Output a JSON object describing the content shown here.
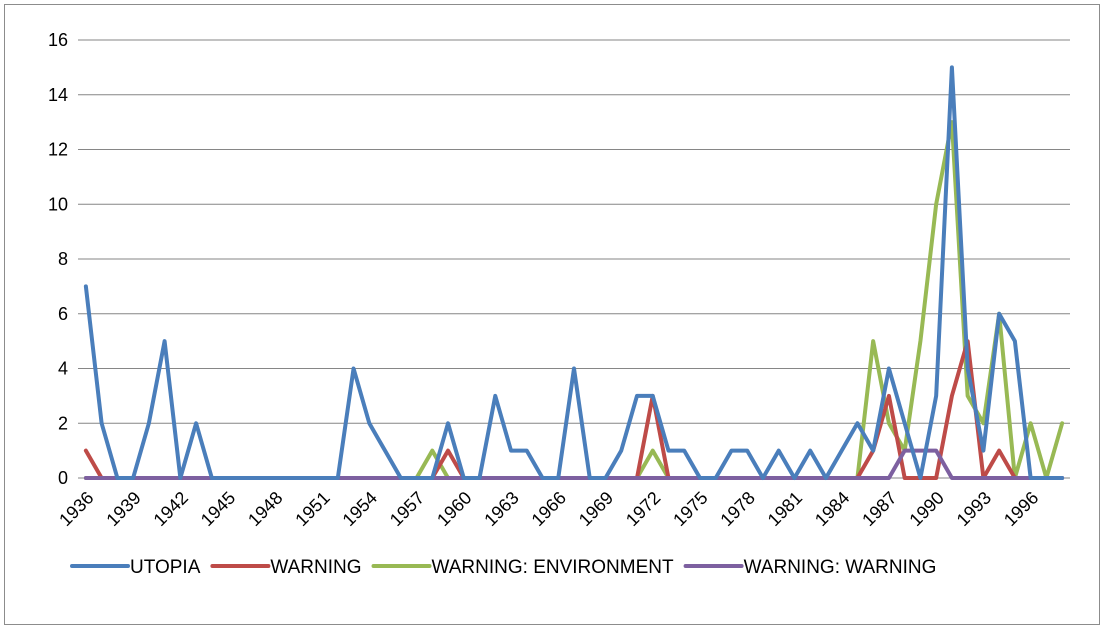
{
  "chart_data": {
    "type": "line",
    "title": "",
    "xlabel": "",
    "ylabel": "",
    "ylim": [
      0,
      16
    ],
    "yticks": [
      0,
      2,
      4,
      6,
      8,
      10,
      12,
      14,
      16
    ],
    "x": [
      1936,
      1937,
      1938,
      1939,
      1940,
      1941,
      1942,
      1943,
      1944,
      1945,
      1946,
      1947,
      1948,
      1949,
      1950,
      1951,
      1952,
      1953,
      1954,
      1955,
      1956,
      1957,
      1958,
      1959,
      1960,
      1961,
      1962,
      1963,
      1964,
      1965,
      1966,
      1967,
      1968,
      1969,
      1970,
      1971,
      1972,
      1973,
      1974,
      1975,
      1976,
      1977,
      1978,
      1979,
      1980,
      1981,
      1982,
      1983,
      1984,
      1985,
      1986,
      1987,
      1988,
      1989,
      1990,
      1991,
      1992,
      1993,
      1994,
      1995,
      1996,
      1997,
      1998
    ],
    "xtick_labels": [
      "1936",
      "1939",
      "1942",
      "1945",
      "1948",
      "1951",
      "1954",
      "1957",
      "1960",
      "1963",
      "1966",
      "1969",
      "1972",
      "1975",
      "1978",
      "1981",
      "1984",
      "1987",
      "1990",
      "1993",
      "1996"
    ],
    "grid": "horizontal",
    "legend_position": "bottom",
    "series": [
      {
        "name": "UTOPIA",
        "color": "#4a7ebb",
        "values": [
          7,
          2,
          0,
          0,
          2,
          5,
          0,
          2,
          0,
          0,
          0,
          0,
          0,
          0,
          0,
          0,
          0,
          4,
          2,
          1,
          0,
          0,
          0,
          2,
          0,
          0,
          3,
          1,
          1,
          0,
          0,
          4,
          0,
          0,
          1,
          3,
          3,
          1,
          1,
          0,
          0,
          1,
          1,
          0,
          1,
          0,
          1,
          0,
          1,
          2,
          1,
          4,
          2,
          0,
          3,
          15,
          4,
          1,
          6,
          5,
          0,
          0,
          0
        ]
      },
      {
        "name": "WARNING",
        "color": "#be4b48",
        "values": [
          1,
          0,
          0,
          0,
          0,
          0,
          0,
          0,
          0,
          0,
          0,
          0,
          0,
          0,
          0,
          0,
          0,
          0,
          0,
          0,
          0,
          0,
          0,
          1,
          0,
          0,
          0,
          0,
          0,
          0,
          0,
          0,
          0,
          0,
          0,
          0,
          3,
          0,
          0,
          0,
          0,
          0,
          0,
          0,
          0,
          0,
          0,
          0,
          0,
          0,
          1,
          3,
          0,
          0,
          0,
          3,
          5,
          0,
          1,
          0,
          0,
          0,
          0
        ]
      },
      {
        "name": "WARNING: ENVIRONMENT",
        "color": "#98b954",
        "values": [
          0,
          0,
          0,
          0,
          0,
          0,
          0,
          0,
          0,
          0,
          0,
          0,
          0,
          0,
          0,
          0,
          0,
          0,
          0,
          0,
          0,
          0,
          1,
          0,
          0,
          0,
          0,
          0,
          0,
          0,
          0,
          0,
          0,
          0,
          0,
          0,
          1,
          0,
          0,
          0,
          0,
          0,
          0,
          0,
          0,
          0,
          0,
          0,
          0,
          0,
          5,
          2,
          1,
          5,
          10,
          13,
          3,
          2,
          6,
          0,
          2,
          0,
          2
        ]
      },
      {
        "name": "WARNING: WARNING",
        "color": "#7d60a0",
        "values": [
          0,
          0,
          0,
          0,
          0,
          0,
          0,
          0,
          0,
          0,
          0,
          0,
          0,
          0,
          0,
          0,
          0,
          0,
          0,
          0,
          0,
          0,
          0,
          0,
          0,
          0,
          0,
          0,
          0,
          0,
          0,
          0,
          0,
          0,
          0,
          0,
          0,
          0,
          0,
          0,
          0,
          0,
          0,
          0,
          0,
          0,
          0,
          0,
          0,
          0,
          0,
          0,
          1,
          1,
          1,
          0,
          0,
          0,
          0,
          0,
          0,
          0,
          0
        ]
      }
    ]
  }
}
